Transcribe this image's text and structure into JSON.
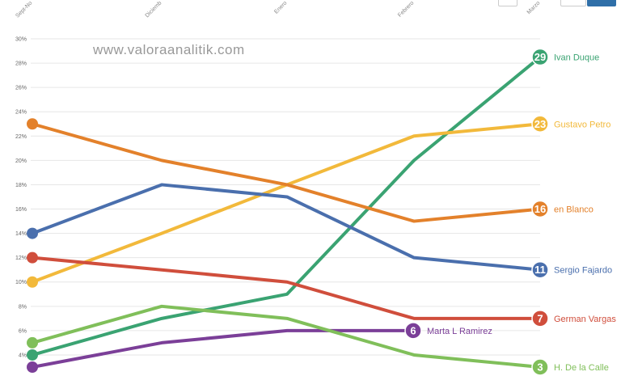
{
  "watermark": "www.valoraanalitik.com",
  "chart_data": {
    "type": "line",
    "x": [
      "Sept-No",
      "Diciemb",
      "Enero",
      "Febrero",
      "Marzo"
    ],
    "ylim": [
      3,
      30
    ],
    "yticks": [
      "4%",
      "6%",
      "8%",
      "10%",
      "12%",
      "14%",
      "16%",
      "18%",
      "20%",
      "22%",
      "24%",
      "26%",
      "28%",
      "30%"
    ],
    "grid": true,
    "series": [
      {
        "name": "Ivan Duque",
        "color": "#3aa372",
        "values": [
          4,
          7,
          9,
          20,
          28.5
        ],
        "end_label": "29"
      },
      {
        "name": "Gustavo Petro",
        "color": "#f2b93b",
        "values": [
          10,
          14,
          18,
          22,
          23
        ],
        "end_label": "23"
      },
      {
        "name": "en Blanco",
        "color": "#e3812b",
        "values": [
          23,
          20,
          18,
          15,
          16
        ],
        "end_label": "16"
      },
      {
        "name": "Sergio Fajardo",
        "color": "#4a6fad",
        "values": [
          14,
          18,
          17,
          12,
          11
        ],
        "end_label": "11"
      },
      {
        "name": "German Vargas",
        "color": "#d04e3c",
        "values": [
          12,
          11,
          10,
          7,
          7
        ],
        "end_label": "7"
      },
      {
        "name": "Marta L Ramirez",
        "color": "#7b3f98",
        "values": [
          3,
          5,
          6,
          6,
          null
        ],
        "end_label": "6"
      },
      {
        "name": "H. De la Calle",
        "color": "#80bf5a",
        "values": [
          5,
          8,
          7,
          4,
          3
        ],
        "end_label": "3"
      }
    ]
  }
}
